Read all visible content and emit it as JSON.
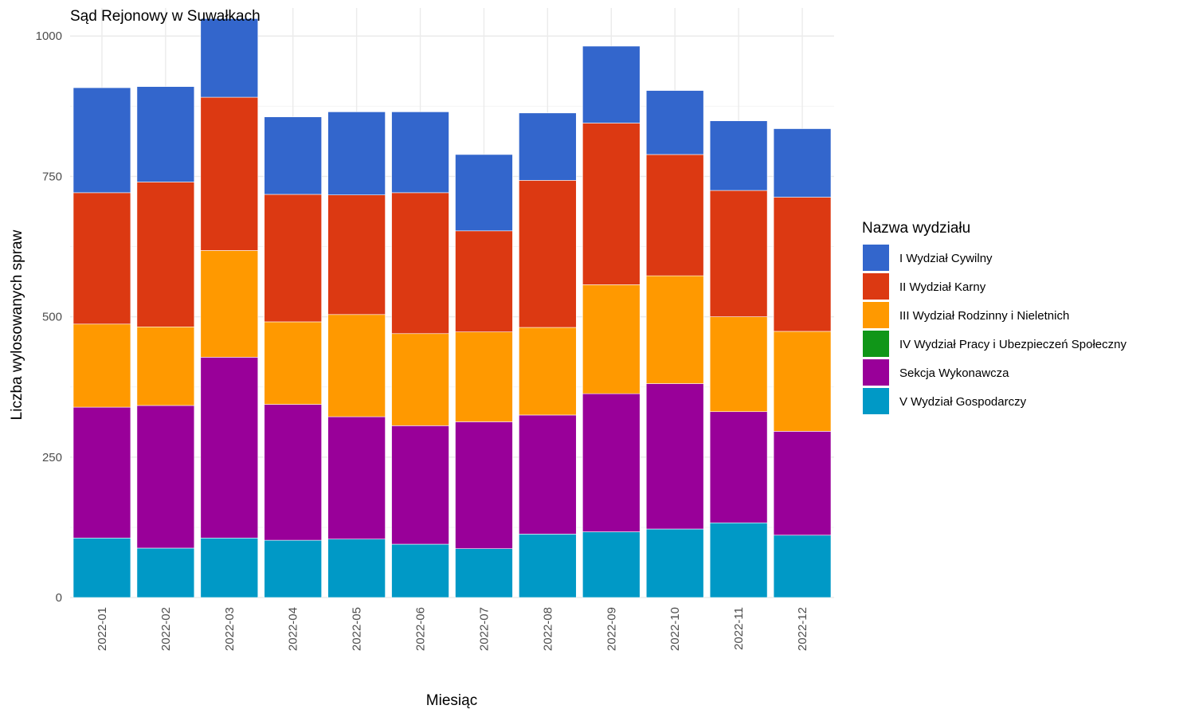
{
  "chart_data": {
    "type": "bar",
    "stacked": true,
    "title": "Sąd Rejonowy w Suwałkach",
    "xlabel": "Miesiąc",
    "ylabel": "Liczba wylosowanych spraw",
    "ylim": [
      0,
      1050
    ],
    "yticks": [
      0,
      250,
      500,
      750,
      1000
    ],
    "grid": true,
    "legend_title": "Nazwa wydziału",
    "legend_position": "right",
    "categories": [
      "2022-01",
      "2022-02",
      "2022-03",
      "2022-04",
      "2022-05",
      "2022-06",
      "2022-07",
      "2022-08",
      "2022-09",
      "2022-10",
      "2022-11",
      "2022-12"
    ],
    "series": [
      {
        "name": "I Wydział Cywilny",
        "color": "#3366CC",
        "values": [
          187,
          170,
          140,
          138,
          148,
          144,
          136,
          120,
          137,
          114,
          124,
          122
        ]
      },
      {
        "name": "II Wydział Karny",
        "color": "#DC3912",
        "values": [
          234,
          258,
          273,
          227,
          213,
          251,
          180,
          262,
          288,
          216,
          225,
          239
        ]
      },
      {
        "name": "III Wydział Rodzinny i Nieletnich",
        "color": "#FF9900",
        "values": [
          148,
          140,
          190,
          147,
          182,
          164,
          160,
          156,
          194,
          192,
          169,
          178
        ]
      },
      {
        "name": "IV Wydział Pracy i Ubezpieczeń Społeczny",
        "color": "#109618",
        "values": [
          0,
          0,
          0,
          0,
          0,
          0,
          0,
          0,
          0,
          0,
          0,
          0
        ]
      },
      {
        "name": "Sekcja Wykonawcza",
        "color": "#990099",
        "values": [
          233,
          254,
          322,
          242,
          218,
          211,
          226,
          212,
          246,
          259,
          198,
          185
        ]
      },
      {
        "name": "V Wydział Gospodarczy",
        "color": "#0099C6",
        "values": [
          106,
          88,
          106,
          102,
          104,
          95,
          87,
          113,
          117,
          122,
          133,
          111
        ]
      }
    ]
  }
}
